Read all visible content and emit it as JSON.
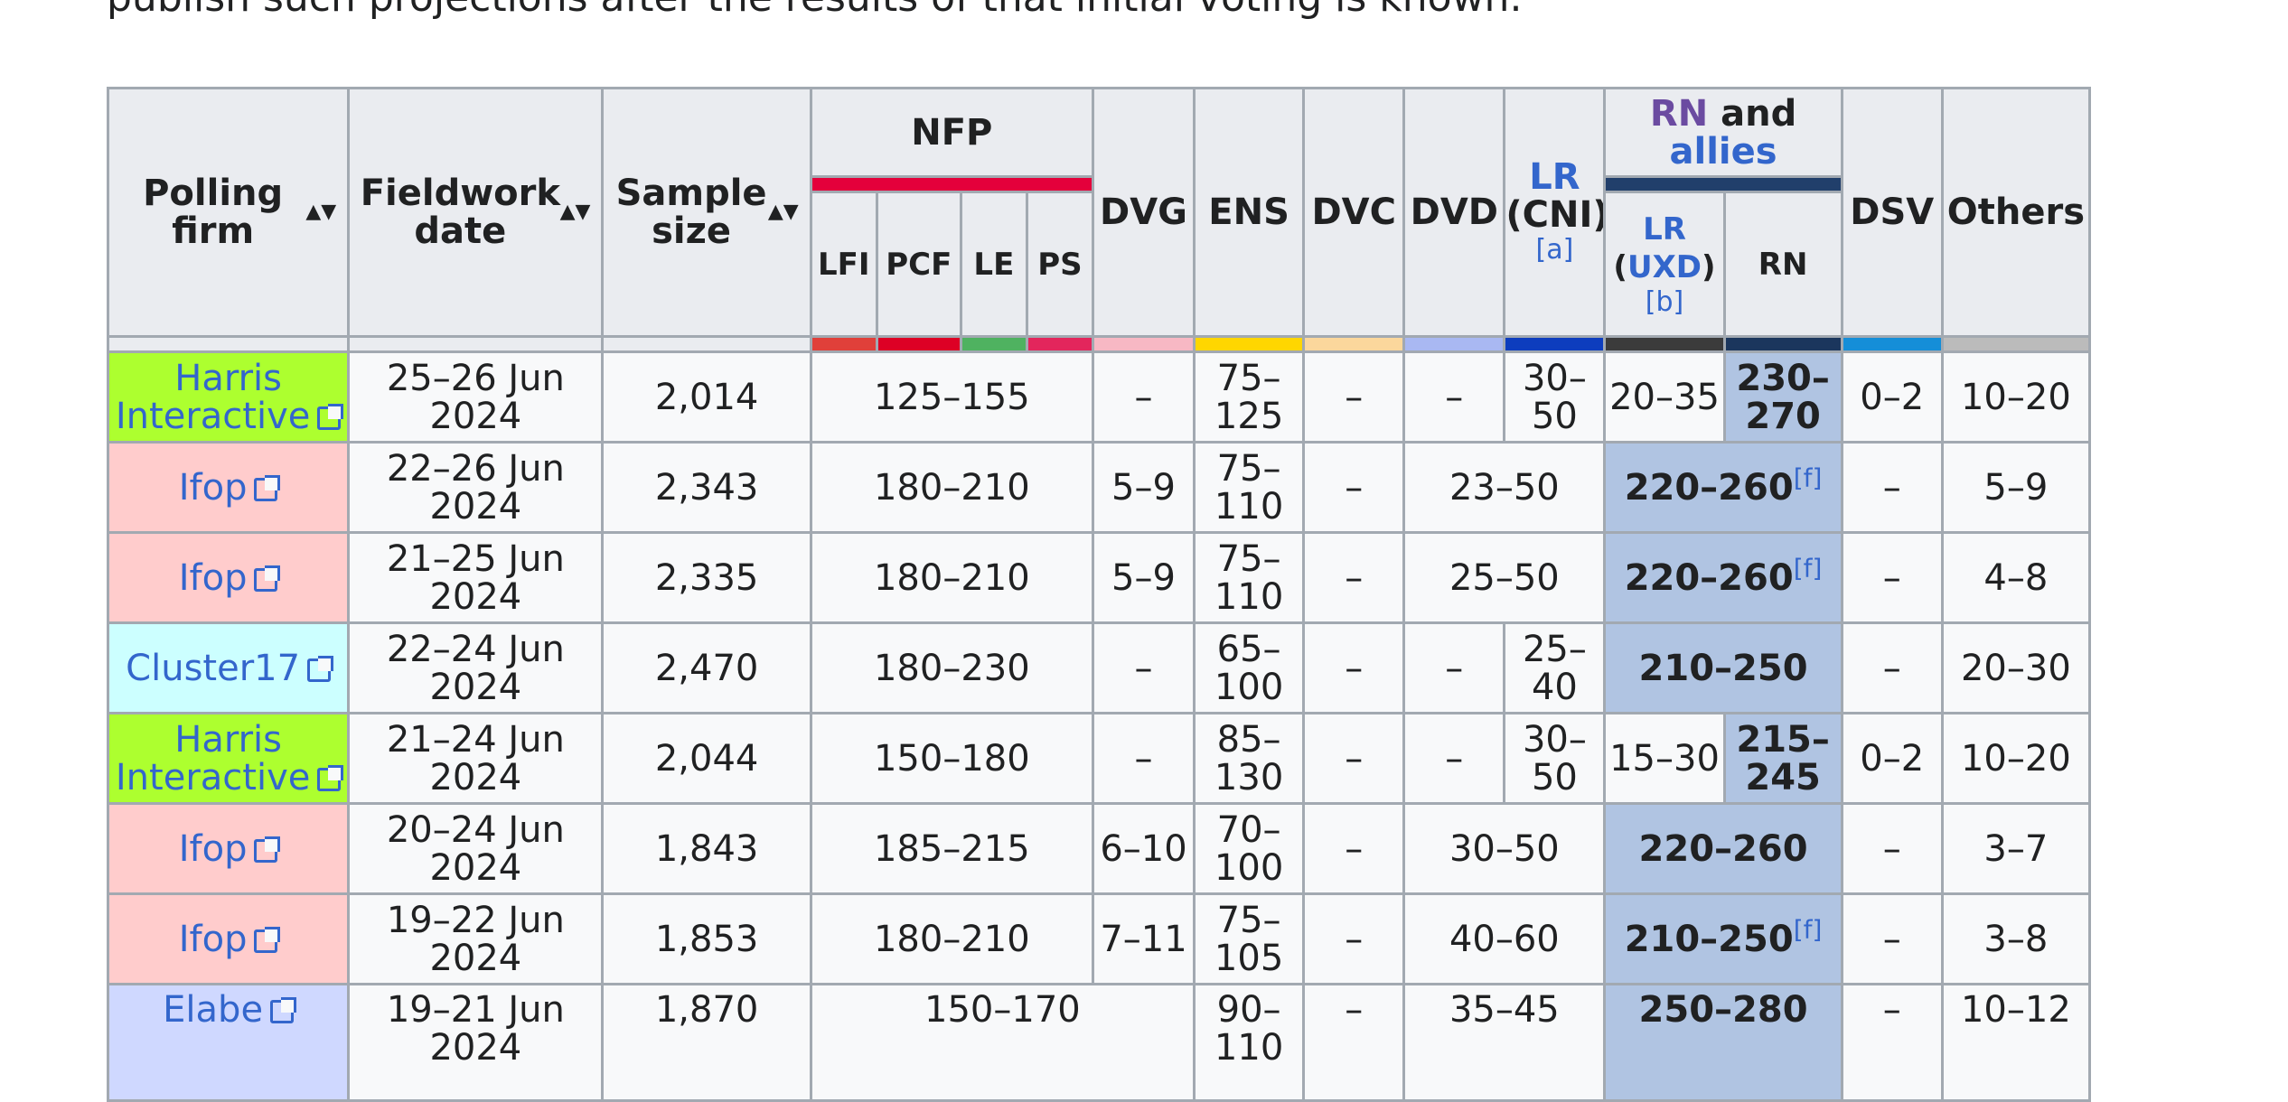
{
  "intro_text": "publish such projections after the results of that initial voting is known.",
  "headers": {
    "polling_firm": "Polling firm",
    "fieldwork_date": "Fieldwork date",
    "sample_size": "Sample size",
    "nfp": "NFP",
    "nfp_subs": [
      "LFI",
      "PCF",
      "LE",
      "PS"
    ],
    "dvg": "DVG",
    "ens": "ENS",
    "dvc": "DVC",
    "dvd": "DVD",
    "lr_cni": {
      "lr": "LR",
      "cni": "(CNI)",
      "ref": "[a]"
    },
    "rn_allies": {
      "rn": "RN",
      "and": "and",
      "allies": "allies"
    },
    "lr_uxd": {
      "lr": "LR",
      "uxd_open": "(",
      "uxd": "UXD",
      "uxd_close": ")",
      "ref": "[b]"
    },
    "rn": "RN",
    "dsv": "DSV",
    "others": "Others",
    "sort_icon": "▲▼"
  },
  "colors": {
    "nfp": "#e4003b",
    "lfi": "#e0403a",
    "pcf": "#dd0025",
    "le": "#4fb260",
    "ps": "#e3265c",
    "dvg": "#f7b8c4",
    "ens": "#ffd600",
    "dvc": "#fbd79c",
    "dvd": "#a9b8f2",
    "lr_cni": "#0d3dbe",
    "rn_allies": "#213f6b",
    "lr_uxd": "#3b3b3b",
    "rn": "#1b365d",
    "dsv": "#158ed8",
    "others": "#bbbbbb",
    "harris": "#adff2f",
    "ifop": "#ffcccc",
    "cluster17": "#ccffff",
    "elabe": "#cfd8ff",
    "winner": "#b0c4e2"
  },
  "rows": [
    {
      "firm": "Harris Interactive",
      "firm_color": "#adff2f",
      "date": "25–26 Jun 2024",
      "sample": "2,014",
      "nfp": "125–155",
      "dvg": "–",
      "ens": "75–125",
      "dvc": "–",
      "dvd": "–",
      "lr_cni": "30–50",
      "lr_uxd": "20–35",
      "rn": "230–270",
      "dsv": "0–2",
      "others": "10–20"
    },
    {
      "firm": "Ifop",
      "firm_color": "#ffcccc",
      "date": "22–26 Jun 2024",
      "sample": "2,343",
      "nfp": "180–210",
      "dvg": "5–9",
      "ens": "75–110",
      "dvc": "–",
      "dvd_lr": "23–50",
      "rn_allies": "220–260",
      "rn_ref": "[f]",
      "dsv": "–",
      "others": "5–9"
    },
    {
      "firm": "Ifop",
      "firm_color": "#ffcccc",
      "date": "21–25 Jun 2024",
      "sample": "2,335",
      "nfp": "180–210",
      "dvg": "5–9",
      "ens": "75–110",
      "dvc": "–",
      "dvd_lr": "25–50",
      "rn_allies": "220–260",
      "rn_ref": "[f]",
      "dsv": "–",
      "others": "4–8"
    },
    {
      "firm": "Cluster17",
      "firm_color": "#ccffff",
      "date": "22–24 Jun 2024",
      "sample": "2,470",
      "nfp": "180–230",
      "dvg": "–",
      "ens": "65–100",
      "dvc": "–",
      "dvd": "–",
      "lr_cni": "25–40",
      "rn_allies": "210–250",
      "dsv": "–",
      "others": "20–30"
    },
    {
      "firm": "Harris Interactive",
      "firm_color": "#adff2f",
      "date": "21–24 Jun 2024",
      "sample": "2,044",
      "nfp": "150–180",
      "dvg": "–",
      "ens": "85–130",
      "dvc": "–",
      "dvd": "–",
      "lr_cni": "30–50",
      "lr_uxd": "15–30",
      "rn": "215–245",
      "dsv": "0–2",
      "others": "10–20"
    },
    {
      "firm": "Ifop",
      "firm_color": "#ffcccc",
      "date": "20–24 Jun 2024",
      "sample": "1,843",
      "nfp": "185–215",
      "dvg": "6–10",
      "ens": "70–100",
      "dvc": "–",
      "dvd_lr": "30–50",
      "rn_allies": "220–260",
      "dsv": "–",
      "others": "3–7"
    },
    {
      "firm": "Ifop",
      "firm_color": "#ffcccc",
      "date": "19–22 Jun 2024",
      "sample": "1,853",
      "nfp": "180–210",
      "dvg": "7–11",
      "ens": "75–105",
      "dvc": "–",
      "dvd_lr": "40–60",
      "rn_allies": "210–250",
      "rn_ref": "[f]",
      "dsv": "–",
      "others": "3–8"
    },
    {
      "firm": "Elabe",
      "firm_color": "#cfd8ff",
      "date": "19–21 Jun 2024",
      "sample": "1,870",
      "nfp_dvg": "150–170",
      "ens": "90–110",
      "dvc": "–",
      "dvd_lr": "35–45",
      "rn_allies": "250–280",
      "dsv": "–",
      "others": "10–12"
    }
  ]
}
